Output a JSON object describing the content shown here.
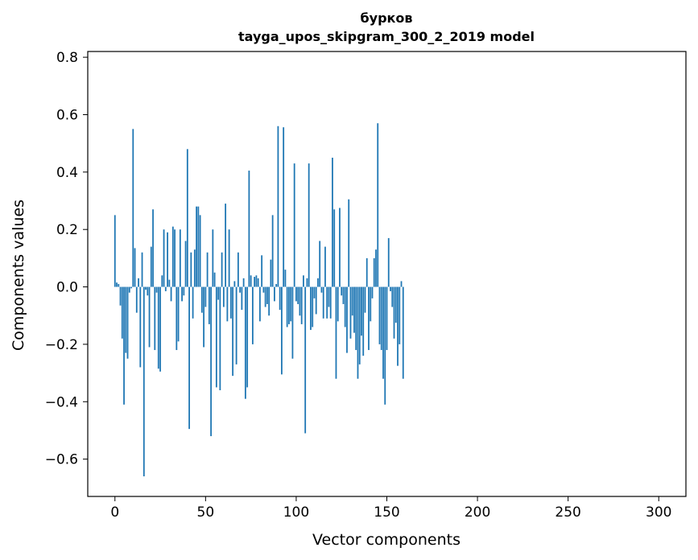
{
  "chart_data": {
    "type": "bar",
    "title_line1": "бурков",
    "title_line2": "tayga_upos_skipgram_300_2_2019 model",
    "xlabel": "Vector components",
    "ylabel": "Components values",
    "xlim": [
      -15,
      315
    ],
    "ylim": [
      -0.73,
      0.82
    ],
    "x_ticks": [
      0,
      50,
      100,
      150,
      200,
      250,
      300
    ],
    "x_tick_labels": [
      "0",
      "50",
      "100",
      "150",
      "200",
      "250",
      "300"
    ],
    "y_ticks": [
      0.8,
      0.6,
      0.4,
      0.2,
      0.0,
      -0.2,
      -0.4,
      -0.6
    ],
    "y_tick_labels": [
      "0.8",
      "0.6",
      "0.4",
      "0.2",
      "0.0",
      "−0.2",
      "−0.4",
      "−0.6"
    ],
    "bar_color": "#1f77b4",
    "grid": false,
    "values": [
      0.25,
      0.015,
      0.01,
      -0.065,
      -0.18,
      -0.41,
      -0.23,
      -0.25,
      -0.02,
      -0.005,
      0.55,
      0.135,
      -0.09,
      0.03,
      -0.28,
      0.12,
      -0.66,
      -0.01,
      -0.03,
      -0.21,
      0.14,
      0.27,
      -0.22,
      -0.02,
      -0.285,
      -0.295,
      0.04,
      0.2,
      -0.015,
      0.19,
      0.025,
      -0.05,
      0.21,
      0.2,
      -0.22,
      -0.19,
      0.2,
      -0.05,
      -0.03,
      0.16,
      0.48,
      -0.495,
      0.12,
      -0.11,
      0.13,
      0.28,
      0.28,
      0.25,
      -0.09,
      -0.21,
      -0.07,
      0.12,
      -0.13,
      -0.52,
      0.2,
      0.05,
      -0.35,
      -0.045,
      -0.36,
      0.12,
      -0.07,
      0.29,
      -0.12,
      0.2,
      -0.11,
      -0.31,
      0.02,
      -0.27,
      0.12,
      -0.02,
      -0.08,
      0.03,
      -0.39,
      -0.35,
      0.405,
      0.04,
      -0.2,
      0.035,
      0.04,
      0.03,
      -0.12,
      0.11,
      -0.02,
      -0.07,
      -0.06,
      -0.1,
      0.095,
      0.25,
      -0.05,
      0.01,
      0.56,
      -0.08,
      -0.305,
      0.556,
      0.06,
      -0.14,
      -0.13,
      -0.12,
      -0.25,
      0.43,
      -0.05,
      -0.06,
      -0.1,
      -0.13,
      0.04,
      -0.51,
      0.03,
      0.43,
      -0.15,
      -0.14,
      -0.04,
      -0.095,
      0.03,
      0.16,
      -0.02,
      -0.11,
      0.14,
      -0.11,
      -0.07,
      -0.11,
      0.45,
      0.27,
      -0.32,
      -0.12,
      0.275,
      -0.03,
      -0.06,
      -0.14,
      -0.23,
      0.305,
      -0.18,
      -0.1,
      -0.16,
      -0.22,
      -0.32,
      -0.27,
      -0.17,
      -0.24,
      -0.09,
      0.1,
      -0.22,
      -0.12,
      -0.04,
      0.1,
      0.13,
      0.57,
      -0.2,
      -0.22,
      -0.32,
      -0.41,
      -0.22,
      0.17,
      -0.015,
      -0.07,
      -0.18,
      -0.125,
      -0.275,
      -0.2,
      0.02,
      -0.32
    ]
  }
}
